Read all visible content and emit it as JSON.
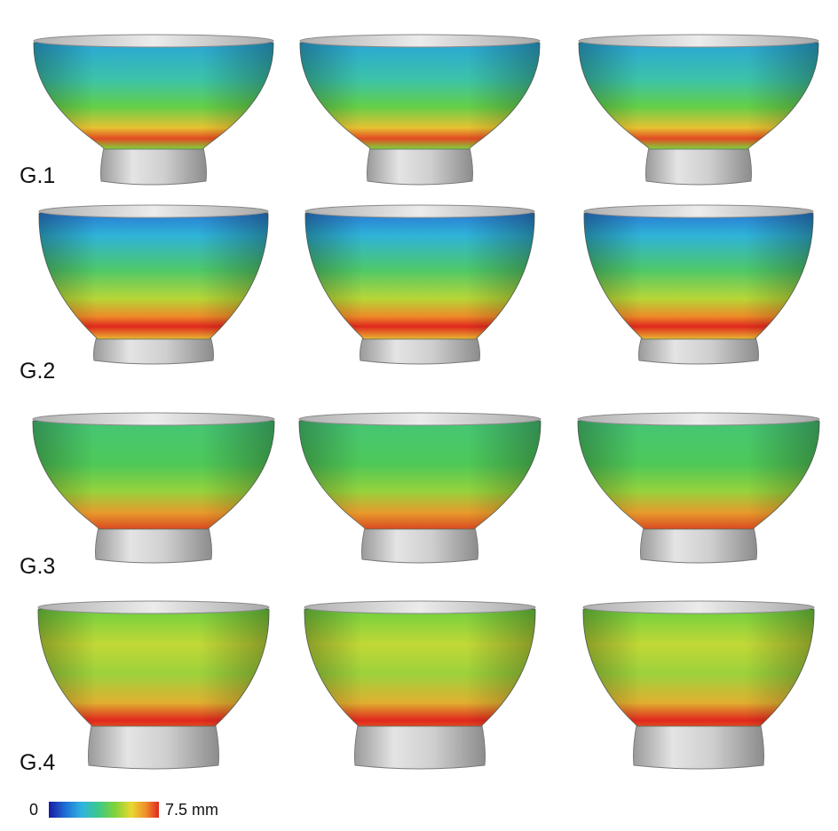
{
  "rows": [
    {
      "label": "G.1"
    },
    {
      "label": "G.2"
    },
    {
      "label": "G.3"
    },
    {
      "label": "G.4"
    }
  ],
  "views_per_row": 3,
  "colorbar": {
    "min_label": "0",
    "max_label": "7.5 mm",
    "colors": [
      "#1a1aa0",
      "#1f6fd6",
      "#2fb3e0",
      "#3cc98a",
      "#7fd23a",
      "#e8d832",
      "#f0902a",
      "#e0281e"
    ]
  },
  "surface_colors": {
    "rim_gray": "#d8d8d8",
    "foot_gray": "#c8c8c8"
  }
}
